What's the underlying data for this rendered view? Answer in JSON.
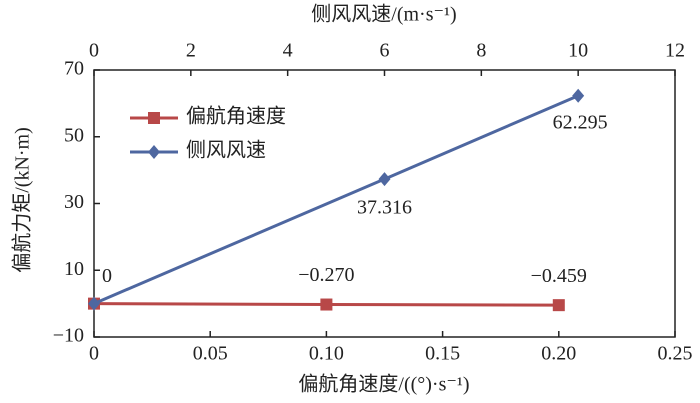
{
  "chart_data": {
    "type": "line",
    "xlabel": "偏航角速度/((°)·s⁻¹)",
    "x2label": "侧风风速/(m·s⁻¹)",
    "ylabel": "偏航力矩/(kN·m)",
    "xlim": [
      0,
      0.25
    ],
    "xticks": [
      0,
      0.05,
      {
        "value": 0.1,
        "label": "0.10"
      },
      0.15,
      {
        "value": 0.2,
        "label": "0.20"
      },
      0.25
    ],
    "x2lim": [
      0,
      12
    ],
    "x2ticks": [
      0,
      2,
      4,
      6,
      8,
      10,
      12
    ],
    "ylim": [
      -10,
      70
    ],
    "yticks": [
      {
        "value": -10,
        "label": "−10"
      },
      10,
      30,
      50,
      70
    ],
    "legend": "upper left",
    "series": [
      {
        "name": "偏航角速度",
        "color": "#b84848",
        "marker": "square",
        "axis": "x",
        "x": [
          0,
          0.1,
          0.2
        ],
        "values": [
          0,
          -0.27,
          -0.459
        ],
        "value_labels": [
          "0",
          "−0.270",
          "−0.459"
        ]
      },
      {
        "name": "侧风风速",
        "color": "#4e67a0",
        "marker": "diamond",
        "axis": "x2",
        "x": [
          0,
          6,
          10
        ],
        "values": [
          0,
          37.316,
          62.295
        ],
        "value_labels": [
          "0",
          "37.316",
          "62.295"
        ]
      }
    ]
  }
}
